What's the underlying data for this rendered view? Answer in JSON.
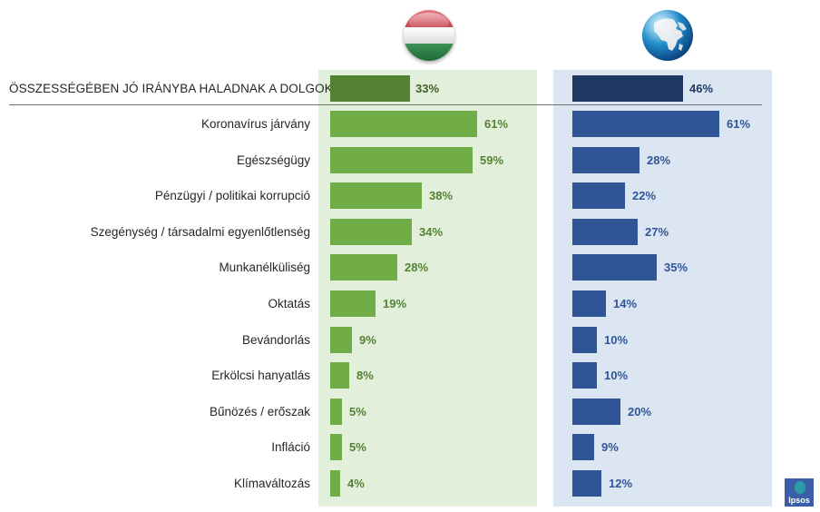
{
  "colors": {
    "hu_panel_bg": "#e2efda",
    "gl_panel_bg": "#dce6f2",
    "hu_header_bar": "#548235",
    "hu_bar": "#70ad47",
    "hu_label": "#548235",
    "gl_header_bar": "#203864",
    "gl_bar": "#2f5597",
    "gl_label": "#2f5597",
    "gl_header_label": "#203864"
  },
  "columns": {
    "hungary": {
      "icon": "hungary-flag-icon"
    },
    "global": {
      "icon": "globe-icon"
    }
  },
  "header_row": {
    "label": "ÖSSZESSÉGÉBEN JÓ IRÁNYBA HALADNAK A DOLGOK",
    "hungary": 33,
    "hungary_text": "33%",
    "global": 46,
    "global_text": "46%"
  },
  "rows": [
    {
      "label": "Koronavírus járvány",
      "hungary": 61,
      "hungary_text": "61%",
      "global": 61,
      "global_text": "61%"
    },
    {
      "label": "Egészségügy",
      "hungary": 59,
      "hungary_text": "59%",
      "global": 28,
      "global_text": "28%"
    },
    {
      "label": "Pénzügyi / politikai korrupció",
      "hungary": 38,
      "hungary_text": "38%",
      "global": 22,
      "global_text": "22%"
    },
    {
      "label": "Szegénység / társadalmi egyenlőtlenség",
      "hungary": 34,
      "hungary_text": "34%",
      "global": 27,
      "global_text": "27%"
    },
    {
      "label": "Munkanélküliség",
      "hungary": 28,
      "hungary_text": "28%",
      "global": 35,
      "global_text": "35%"
    },
    {
      "label": "Oktatás",
      "hungary": 19,
      "hungary_text": "19%",
      "global": 14,
      "global_text": "14%"
    },
    {
      "label": "Bevándorlás",
      "hungary": 9,
      "hungary_text": "9%",
      "global": 10,
      "global_text": "10%"
    },
    {
      "label": "Erkölcsi hanyatlás",
      "hungary": 8,
      "hungary_text": "8%",
      "global": 10,
      "global_text": "10%"
    },
    {
      "label": "Bűnözés / erőszak",
      "hungary": 5,
      "hungary_text": "5%",
      "global": 20,
      "global_text": "20%"
    },
    {
      "label": "Infláció",
      "hungary": 5,
      "hungary_text": "5%",
      "global": 9,
      "global_text": "9%"
    },
    {
      "label": "Klímaváltozás",
      "hungary": 4,
      "hungary_text": "4%",
      "global": 12,
      "global_text": "12%"
    }
  ],
  "logo": {
    "text": "Ipsos"
  },
  "chart_data": {
    "type": "bar",
    "orientation": "horizontal",
    "title": "",
    "categories": [
      "ÖSSZESSÉGÉBEN JÓ IRÁNYBA HALADNAK A DOLGOK",
      "Koronavírus járvány",
      "Egészségügy",
      "Pénzügyi / politikai korrupció",
      "Szegénység / társadalmi egyenlőtlenség",
      "Munkanélküliség",
      "Oktatás",
      "Bevándorlás",
      "Erkölcsi hanyatlás",
      "Bűnözés / erőszak",
      "Infláció",
      "Klímaváltozás"
    ],
    "series": [
      {
        "name": "Magyarország (Hungary flag)",
        "values": [
          33,
          61,
          59,
          38,
          34,
          28,
          19,
          9,
          8,
          5,
          5,
          4
        ]
      },
      {
        "name": "Globális átlag (globe)",
        "values": [
          46,
          61,
          28,
          22,
          27,
          35,
          14,
          10,
          10,
          20,
          9,
          12
        ]
      }
    ],
    "unit": "%",
    "xlabel": "",
    "ylabel": "",
    "xlim": [
      0,
      100
    ],
    "grid": false,
    "legend": "icons above columns (Hungarian flag, globe)",
    "data_labels": true
  }
}
